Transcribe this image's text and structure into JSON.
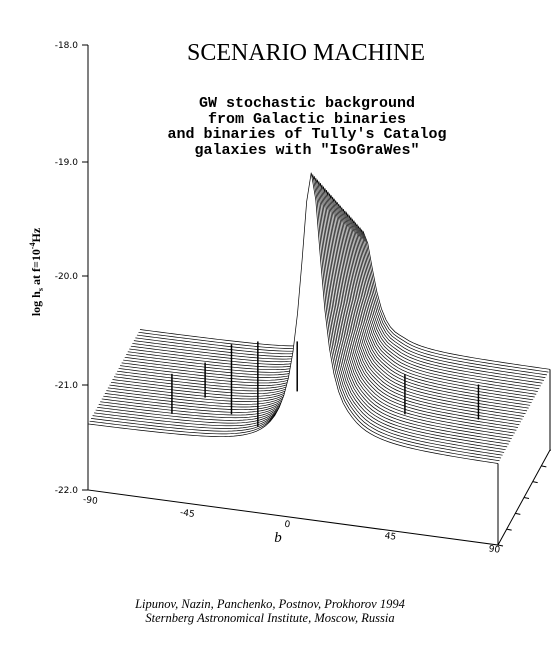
{
  "title": "SCENARIO  MACHINE",
  "subtitle": [
    "GW stochastic background",
    "from Galactic binaries",
    "and binaries of Tully's Catalog",
    "galaxies with \"IsoGraWes\""
  ],
  "y_axis": {
    "label": [
      "log h",
      "s",
      " at f=10",
      "-4",
      "Hz"
    ],
    "ticks": [
      "-18.0",
      "-19.0",
      "-20.0",
      "-21.0",
      "-22.0"
    ]
  },
  "x_axis": {
    "label": "b",
    "ticks": [
      "-90",
      "-45",
      "0",
      "45",
      "90"
    ]
  },
  "credits": [
    "Lipunov, Nazin, Panchenko, Postnov, Prokhorov 1994",
    "Sternberg Astronomical Institute, Moscow, Russia"
  ]
}
